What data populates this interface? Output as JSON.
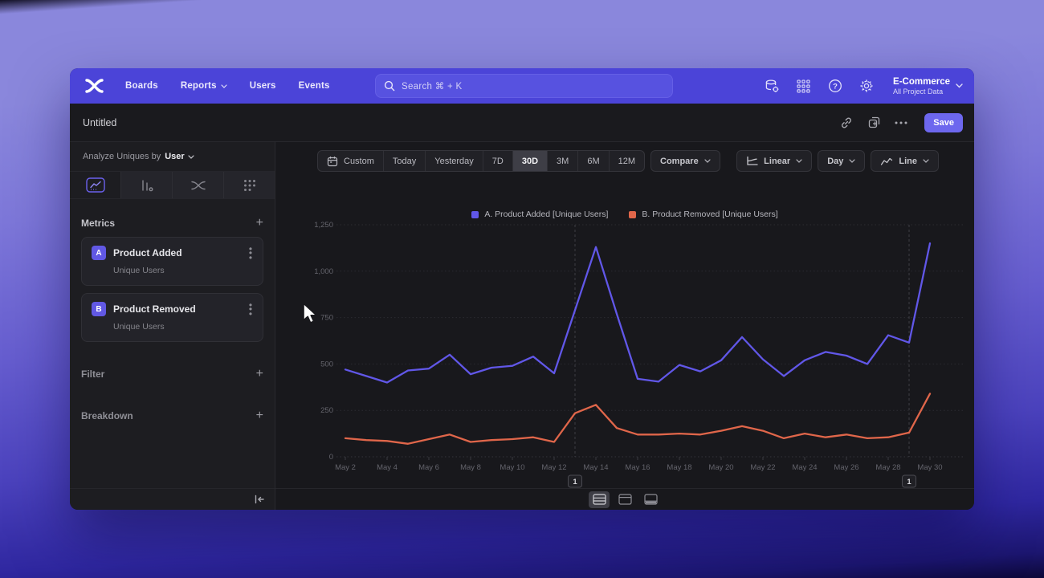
{
  "nav": {
    "links": [
      {
        "label": "Boards",
        "chevron": false
      },
      {
        "label": "Reports",
        "chevron": true
      },
      {
        "label": "Users",
        "chevron": false
      },
      {
        "label": "Events",
        "chevron": false
      }
    ],
    "search_placeholder": "Search  ⌘ + K",
    "project_name": "E-Commerce",
    "project_subtitle": "All Project Data"
  },
  "toolbar": {
    "title": "Untitled",
    "save_label": "Save"
  },
  "sidebar": {
    "analyze_label": "Analyze Uniques by",
    "analyze_value": "User",
    "metrics_header": "Metrics",
    "metrics": [
      {
        "badge": "A",
        "name": "Product Added",
        "subtitle": "Unique Users"
      },
      {
        "badge": "B",
        "name": "Product Removed",
        "subtitle": "Unique Users"
      }
    ],
    "filter_label": "Filter",
    "breakdown_label": "Breakdown"
  },
  "controls": {
    "date_ranges": [
      "Custom",
      "Today",
      "Yesterday",
      "7D",
      "30D",
      "3M",
      "6M",
      "12M"
    ],
    "selected_range": "30D",
    "compare_label": "Compare",
    "linear_label": "Linear",
    "interval_label": "Day",
    "chart_type_label": "Line"
  },
  "chart_data": {
    "type": "line",
    "x": [
      "May 2",
      "May 3",
      "May 4",
      "May 5",
      "May 6",
      "May 7",
      "May 8",
      "May 9",
      "May 10",
      "May 11",
      "May 12",
      "May 13",
      "May 14",
      "May 15",
      "May 16",
      "May 17",
      "May 18",
      "May 19",
      "May 20",
      "May 21",
      "May 22",
      "May 23",
      "May 24",
      "May 25",
      "May 26",
      "May 27",
      "May 28",
      "May 29",
      "May 30"
    ],
    "x_tick_labels": [
      "May 2",
      "May 4",
      "May 6",
      "May 8",
      "May 10",
      "May 12",
      "May 14",
      "May 16",
      "May 18",
      "May 20",
      "May 22",
      "May 24",
      "May 26",
      "May 28",
      "May 30"
    ],
    "ylim": [
      0,
      1250
    ],
    "yticks": [
      0,
      250,
      500,
      750,
      1000,
      1250
    ],
    "ytick_labels": [
      "0",
      "250",
      "500",
      "750",
      "1,000",
      "1,250"
    ],
    "grid": true,
    "legend_position": "top",
    "series": [
      {
        "name": "A. Product Added [Unique Users]",
        "color": "#6157e8",
        "values": [
          470,
          435,
          400,
          465,
          475,
          550,
          445,
          480,
          490,
          540,
          450,
          790,
          1130,
          770,
          420,
          405,
          495,
          460,
          520,
          645,
          525,
          435,
          520,
          565,
          545,
          500,
          655,
          615,
          1150
        ]
      },
      {
        "name": "B. Product Removed [Unique Users]",
        "color": "#e0664a",
        "values": [
          100,
          90,
          85,
          70,
          95,
          120,
          80,
          90,
          95,
          105,
          80,
          235,
          280,
          155,
          120,
          120,
          125,
          120,
          140,
          165,
          140,
          100,
          125,
          105,
          120,
          100,
          105,
          130,
          340
        ]
      }
    ],
    "annotations": [
      {
        "label": "1",
        "x": "May 13"
      },
      {
        "label": "1",
        "x": "May 29"
      }
    ]
  }
}
